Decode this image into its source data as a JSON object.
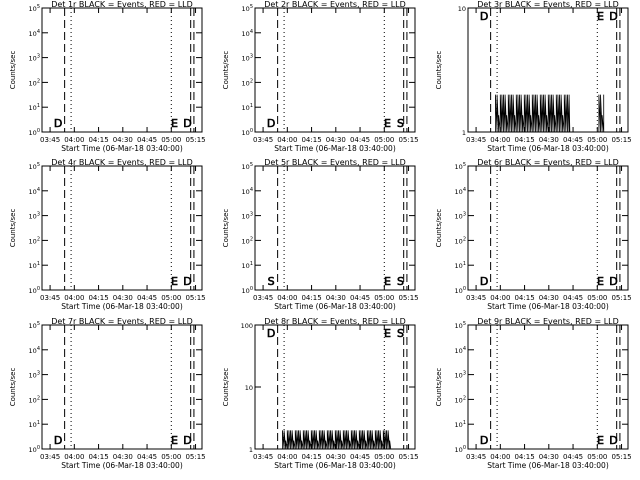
{
  "chart_data": [
    {
      "title": "Det 1r BLACK = Events, RED = LLD",
      "type": "line",
      "scale": "log",
      "ylabel": "Counts/sec",
      "xlabel": "Start Time (06-Mar-18 03:40:00)",
      "xticks": [
        "03:45",
        "04:00",
        "04:15",
        "04:30",
        "04:45",
        "05:00",
        "05:15"
      ],
      "yticks": [
        "10^0",
        "10^1",
        "10^2",
        "10^3",
        "10^4",
        "10^5"
      ],
      "ylim": [
        1,
        100000
      ],
      "markers": [
        {
          "letter": "D",
          "t": "03:50"
        },
        {
          "letter": "E",
          "t": "05:02"
        },
        {
          "letter": "D",
          "t": "05:10"
        }
      ],
      "bursts": []
    },
    {
      "title": "Det 2r BLACK = Events, RED = LLD",
      "type": "line",
      "scale": "log",
      "ylabel": "Counts/sec",
      "xlabel": "Start Time (06-Mar-18 03:40:00)",
      "xticks": [
        "03:45",
        "04:00",
        "04:15",
        "04:30",
        "04:45",
        "05:00",
        "05:15"
      ],
      "yticks": [
        "10^0",
        "10^1",
        "10^2",
        "10^3",
        "10^4",
        "10^5"
      ],
      "ylim": [
        1,
        100000
      ],
      "markers": [
        {
          "letter": "D",
          "t": "03:50"
        },
        {
          "letter": "E",
          "t": "05:02"
        },
        {
          "letter": "S",
          "t": "05:10"
        }
      ],
      "bursts": []
    },
    {
      "title": "Det 3r BLACK = Events, RED = LLD",
      "type": "line",
      "scale": "log",
      "ylabel": "Counts/sec",
      "xlabel": "Start Time (06-Mar-18 03:40:00)",
      "xticks": [
        "03:45",
        "04:00",
        "04:15",
        "04:30",
        "04:45",
        "05:00",
        "05:15"
      ],
      "yticks": [
        "1",
        "10"
      ],
      "ylim": [
        1,
        10
      ],
      "markers": [
        {
          "letter": "D",
          "t": "03:50"
        },
        {
          "letter": "E",
          "t": "05:02"
        },
        {
          "letter": "D",
          "t": "05:10"
        }
      ],
      "bursts": [
        {
          "from": "03:57",
          "to": "04:43",
          "value": 2
        },
        {
          "from": "05:01",
          "to": "05:04",
          "value": 2
        }
      ]
    },
    {
      "title": "Det 4r BLACK = Events, RED = LLD",
      "type": "line",
      "scale": "log",
      "ylabel": "Counts/sec",
      "xlabel": "Start Time (06-Mar-18 03:40:00)",
      "xticks": [
        "03:45",
        "04:00",
        "04:15",
        "04:30",
        "04:45",
        "05:00",
        "05:15"
      ],
      "yticks": [
        "10^0",
        "10^1",
        "10^2",
        "10^3",
        "10^4",
        "10^5"
      ],
      "ylim": [
        1,
        100000
      ],
      "markers": [
        {
          "letter": "E",
          "t": "05:02"
        },
        {
          "letter": "D",
          "t": "05:10"
        }
      ],
      "bursts": []
    },
    {
      "title": "Det 5r BLACK = Events, RED = LLD",
      "type": "line",
      "scale": "log",
      "ylabel": "Counts/sec",
      "xlabel": "Start Time (06-Mar-18 03:40:00)",
      "xticks": [
        "03:45",
        "04:00",
        "04:15",
        "04:30",
        "04:45",
        "05:00",
        "05:15"
      ],
      "yticks": [
        "10^0",
        "10^1",
        "10^2",
        "10^3",
        "10^4",
        "10^5"
      ],
      "ylim": [
        1,
        100000
      ],
      "markers": [
        {
          "letter": "S",
          "t": "03:50"
        },
        {
          "letter": "E",
          "t": "05:02"
        },
        {
          "letter": "S",
          "t": "05:10"
        }
      ],
      "bursts": []
    },
    {
      "title": "Det 6r BLACK = Events, RED = LLD",
      "type": "line",
      "scale": "log",
      "ylabel": "Counts/sec",
      "xlabel": "Start Time (06-Mar-18 03:40:00)",
      "xticks": [
        "03:45",
        "04:00",
        "04:15",
        "04:30",
        "04:45",
        "05:00",
        "05:15"
      ],
      "yticks": [
        "10^0",
        "10^1",
        "10^2",
        "10^3",
        "10^4",
        "10^5"
      ],
      "ylim": [
        1,
        100000
      ],
      "markers": [
        {
          "letter": "D",
          "t": "03:50"
        },
        {
          "letter": "E",
          "t": "05:02"
        },
        {
          "letter": "D",
          "t": "05:10"
        }
      ],
      "bursts": []
    },
    {
      "title": "Det 7r BLACK = Events, RED = LLD",
      "type": "line",
      "scale": "log",
      "ylabel": "Counts/sec",
      "xlabel": "Start Time (06-Mar-18 03:40:00)",
      "xticks": [
        "03:45",
        "04:00",
        "04:15",
        "04:30",
        "04:45",
        "05:00",
        "05:15"
      ],
      "yticks": [
        "10^0",
        "10^1",
        "10^2",
        "10^3",
        "10^4",
        "10^5"
      ],
      "ylim": [
        1,
        100000
      ],
      "markers": [
        {
          "letter": "D",
          "t": "03:50"
        },
        {
          "letter": "E",
          "t": "05:02"
        },
        {
          "letter": "D",
          "t": "05:10"
        }
      ],
      "bursts": []
    },
    {
      "title": "Det 8r BLACK = Events, RED = LLD",
      "type": "line",
      "scale": "log",
      "ylabel": "Counts/sec",
      "xlabel": "Start Time (06-Mar-18 03:40:00)",
      "xticks": [
        "03:45",
        "04:00",
        "04:15",
        "04:30",
        "04:45",
        "05:00",
        "05:15"
      ],
      "yticks": [
        "1",
        "10",
        "100"
      ],
      "ylim": [
        1,
        100
      ],
      "markers": [
        {
          "letter": "D",
          "t": "03:50"
        },
        {
          "letter": "E",
          "t": "05:02"
        },
        {
          "letter": "S",
          "t": "05:10"
        }
      ],
      "bursts": [
        {
          "from": "03:57",
          "to": "05:04",
          "value": 2
        }
      ]
    },
    {
      "title": "Det 9r BLACK = Events, RED = LLD",
      "type": "line",
      "scale": "log",
      "ylabel": "Counts/sec",
      "xlabel": "Start Time (06-Mar-18 03:40:00)",
      "xticks": [
        "03:45",
        "04:00",
        "04:15",
        "04:30",
        "04:45",
        "05:00",
        "05:15"
      ],
      "yticks": [
        "10^0",
        "10^1",
        "10^2",
        "10^3",
        "10^4",
        "10^5"
      ],
      "ylim": [
        1,
        100000
      ],
      "markers": [
        {
          "letter": "D",
          "t": "03:50"
        },
        {
          "letter": "E",
          "t": "05:02"
        },
        {
          "letter": "D",
          "t": "05:10"
        }
      ],
      "bursts": []
    }
  ]
}
